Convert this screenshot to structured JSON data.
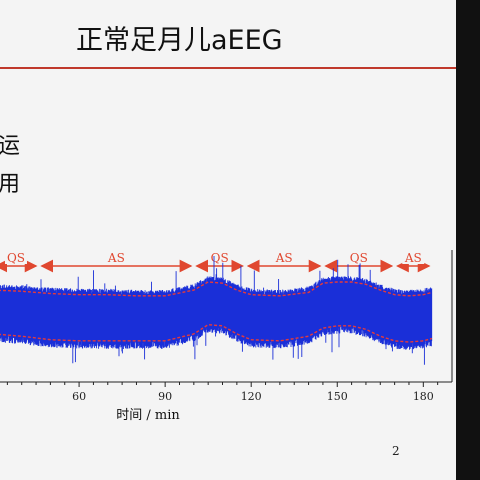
{
  "slide": {
    "title": "正常足月儿aEEG",
    "left_fragments": [
      "运",
      "用"
    ],
    "page_number": "2"
  },
  "chart_data": {
    "type": "area",
    "title": "",
    "xlabel": "时间 / min",
    "ylabel": "",
    "x_ticks": [
      60,
      90,
      120,
      150,
      180
    ],
    "stages": [
      {
        "label": "QS",
        "start": 30,
        "end": 46
      },
      {
        "label": "AS",
        "start": 46,
        "end": 100
      },
      {
        "label": "QS",
        "start": 100,
        "end": 118
      },
      {
        "label": "AS",
        "start": 118,
        "end": 145
      },
      {
        "label": "QS",
        "start": 145,
        "end": 170
      },
      {
        "label": "AS",
        "start": 170,
        "end": 183
      }
    ],
    "upper_margin": {
      "x": [
        30,
        40,
        50,
        60,
        70,
        80,
        90,
        100,
        105,
        110,
        115,
        120,
        130,
        140,
        145,
        150,
        155,
        160,
        165,
        170,
        175,
        180,
        183
      ],
      "y": [
        0.78,
        0.77,
        0.75,
        0.74,
        0.74,
        0.73,
        0.73,
        0.78,
        0.85,
        0.84,
        0.78,
        0.74,
        0.73,
        0.76,
        0.84,
        0.85,
        0.85,
        0.83,
        0.78,
        0.74,
        0.73,
        0.74,
        0.76
      ]
    },
    "lower_margin": {
      "x": [
        30,
        40,
        50,
        60,
        70,
        80,
        90,
        100,
        105,
        110,
        115,
        120,
        130,
        140,
        145,
        150,
        155,
        160,
        165,
        170,
        175,
        180,
        183
      ],
      "y": [
        0.4,
        0.38,
        0.35,
        0.34,
        0.34,
        0.34,
        0.34,
        0.4,
        0.48,
        0.47,
        0.4,
        0.35,
        0.34,
        0.38,
        0.45,
        0.47,
        0.47,
        0.44,
        0.38,
        0.34,
        0.33,
        0.34,
        0.36
      ]
    },
    "colors": {
      "trace": "#1a2fd8",
      "margin": "#e63a3a",
      "stage": "#e0472f"
    }
  }
}
